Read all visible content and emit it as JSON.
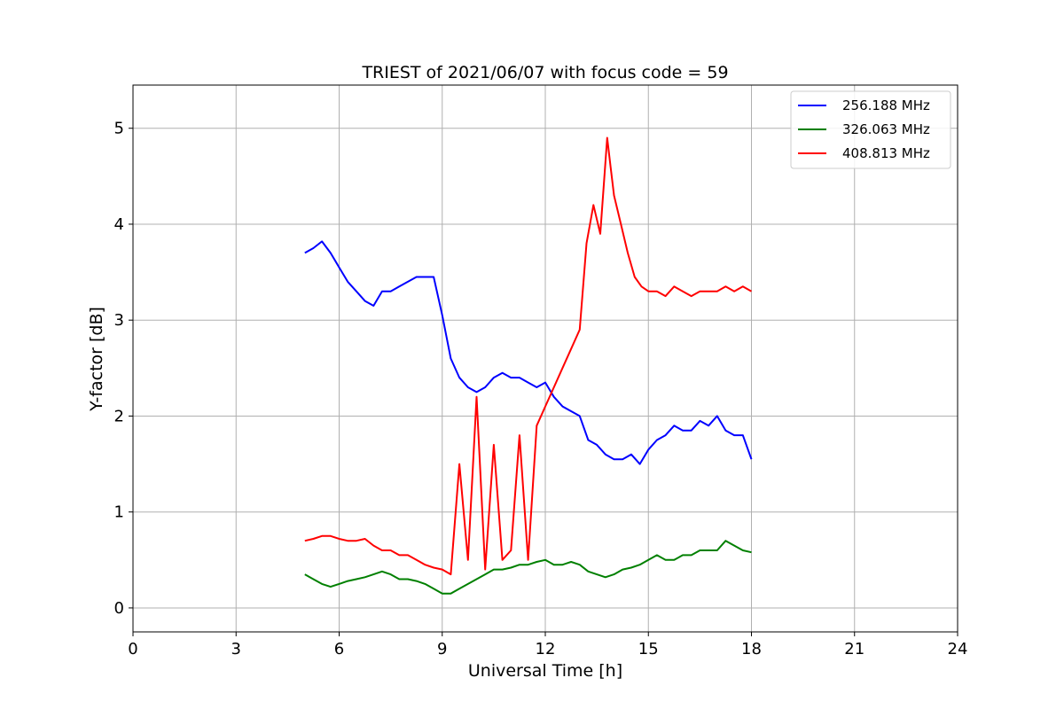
{
  "chart_data": {
    "type": "line",
    "title": "TRIEST of 2021/06/07 with focus code = 59",
    "xlabel": "Universal Time [h]",
    "ylabel": "Y-factor [dB]",
    "xlim": [
      0,
      24
    ],
    "ylim": [
      -0.25,
      5.45
    ],
    "xticks": [
      0,
      3,
      6,
      9,
      12,
      15,
      18,
      21,
      24
    ],
    "yticks": [
      0,
      1,
      2,
      3,
      4,
      5
    ],
    "grid": true,
    "legend_position": "top-right",
    "series": [
      {
        "name": "256.188 MHz",
        "color": "#0000ff",
        "x": [
          5.0,
          5.25,
          5.5,
          5.75,
          6.0,
          6.25,
          6.5,
          6.75,
          7.0,
          7.25,
          7.5,
          7.75,
          8.0,
          8.25,
          8.5,
          8.75,
          9.0,
          9.25,
          9.5,
          9.75,
          10.0,
          10.25,
          10.5,
          10.75,
          11.0,
          11.25,
          11.5,
          11.75,
          12.0,
          12.25,
          12.5,
          12.75,
          13.0,
          13.25,
          13.5,
          13.75,
          14.0,
          14.25,
          14.5,
          14.75,
          15.0,
          15.25,
          15.5,
          15.75,
          16.0,
          16.25,
          16.5,
          16.75,
          17.0,
          17.25,
          17.5,
          17.75,
          18.0
        ],
        "y": [
          3.7,
          3.75,
          3.82,
          3.7,
          3.55,
          3.4,
          3.3,
          3.2,
          3.15,
          3.3,
          3.3,
          3.35,
          3.4,
          3.45,
          3.45,
          3.45,
          3.05,
          2.6,
          2.4,
          2.3,
          2.25,
          2.3,
          2.4,
          2.45,
          2.4,
          2.4,
          2.35,
          2.3,
          2.35,
          2.2,
          2.1,
          2.05,
          2.0,
          1.75,
          1.7,
          1.6,
          1.55,
          1.55,
          1.6,
          1.5,
          1.65,
          1.75,
          1.8,
          1.9,
          1.85,
          1.85,
          1.95,
          1.9,
          2.0,
          1.85,
          1.8,
          1.8,
          1.55
        ]
      },
      {
        "name": "326.063 MHz",
        "color": "#008000",
        "x": [
          5.0,
          5.25,
          5.5,
          5.75,
          6.0,
          6.25,
          6.5,
          6.75,
          7.0,
          7.25,
          7.5,
          7.75,
          8.0,
          8.25,
          8.5,
          8.75,
          9.0,
          9.25,
          9.5,
          9.75,
          10.0,
          10.25,
          10.5,
          10.75,
          11.0,
          11.25,
          11.5,
          11.75,
          12.0,
          12.25,
          12.5,
          12.75,
          13.0,
          13.25,
          13.5,
          13.75,
          14.0,
          14.25,
          14.5,
          14.75,
          15.0,
          15.25,
          15.5,
          15.75,
          16.0,
          16.25,
          16.5,
          16.75,
          17.0,
          17.25,
          17.5,
          17.75,
          18.0
        ],
        "y": [
          0.35,
          0.3,
          0.25,
          0.22,
          0.25,
          0.28,
          0.3,
          0.32,
          0.35,
          0.38,
          0.35,
          0.3,
          0.3,
          0.28,
          0.25,
          0.2,
          0.15,
          0.15,
          0.2,
          0.25,
          0.3,
          0.35,
          0.4,
          0.4,
          0.42,
          0.45,
          0.45,
          0.48,
          0.5,
          0.45,
          0.45,
          0.48,
          0.45,
          0.38,
          0.35,
          0.32,
          0.35,
          0.4,
          0.42,
          0.45,
          0.5,
          0.55,
          0.5,
          0.5,
          0.55,
          0.55,
          0.6,
          0.6,
          0.6,
          0.7,
          0.65,
          0.6,
          0.58
        ]
      },
      {
        "name": "408.813 MHz",
        "color": "#ff0000",
        "x": [
          5.0,
          5.25,
          5.5,
          5.75,
          6.0,
          6.25,
          6.5,
          6.75,
          7.0,
          7.25,
          7.5,
          7.75,
          8.0,
          8.25,
          8.5,
          8.75,
          9.0,
          9.25,
          9.5,
          9.75,
          10.0,
          10.25,
          10.5,
          10.75,
          11.0,
          11.25,
          11.5,
          11.75,
          12.0,
          12.25,
          12.5,
          12.75,
          13.0,
          13.2,
          13.4,
          13.6,
          13.8,
          13.9,
          14.0,
          14.2,
          14.4,
          14.6,
          14.8,
          15.0,
          15.25,
          15.5,
          15.75,
          16.0,
          16.25,
          16.5,
          16.75,
          17.0,
          17.25,
          17.5,
          17.75,
          18.0
        ],
        "y": [
          0.7,
          0.72,
          0.75,
          0.75,
          0.72,
          0.7,
          0.7,
          0.72,
          0.65,
          0.6,
          0.6,
          0.55,
          0.55,
          0.5,
          0.45,
          0.42,
          0.4,
          0.35,
          1.5,
          0.5,
          2.2,
          0.4,
          1.7,
          0.5,
          0.6,
          1.8,
          0.5,
          1.9,
          2.1,
          2.3,
          2.5,
          2.7,
          2.9,
          3.8,
          4.2,
          3.9,
          4.9,
          4.6,
          4.3,
          4.0,
          3.7,
          3.45,
          3.35,
          3.3,
          3.3,
          3.25,
          3.35,
          3.3,
          3.25,
          3.3,
          3.3,
          3.3,
          3.35,
          3.3,
          3.35,
          3.3
        ]
      }
    ]
  }
}
